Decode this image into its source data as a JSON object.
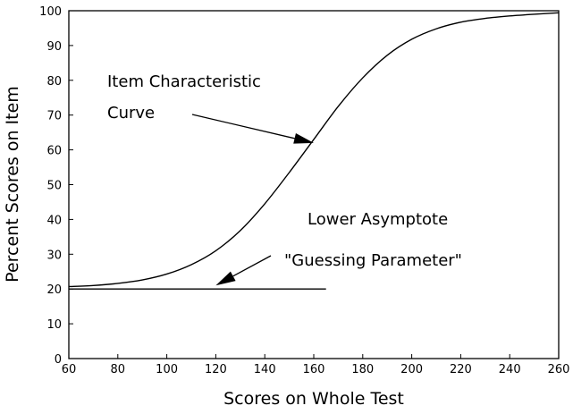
{
  "chart_data": {
    "type": "line",
    "title": "",
    "xlabel": "Scores on Whole Test",
    "ylabel": "Percent Scores on Item",
    "xlim": [
      60,
      260
    ],
    "ylim": [
      0,
      100
    ],
    "x_ticks": [
      60,
      80,
      100,
      120,
      140,
      160,
      180,
      200,
      220,
      240,
      260
    ],
    "y_ticks": [
      0,
      10,
      20,
      30,
      40,
      50,
      60,
      70,
      80,
      90,
      100
    ],
    "grid": false,
    "series": [
      {
        "x": [
          60,
          70,
          80,
          90,
          100,
          110,
          120,
          130,
          140,
          150,
          160,
          170,
          180,
          190,
          200,
          210,
          220,
          230,
          240,
          250,
          260
        ],
        "y": [
          20.7,
          21.0,
          21.6,
          22.6,
          24.3,
          27.0,
          31.0,
          36.8,
          44.5,
          53.5,
          63.0,
          72.5,
          80.7,
          87.2,
          91.8,
          94.8,
          96.7,
          97.8,
          98.5,
          99.0,
          99.4
        ]
      }
    ],
    "reference_lines": [
      {
        "x": [
          60,
          165
        ],
        "y": [
          20,
          20
        ]
      }
    ],
    "annotations": [
      {
        "lines": [
          "Item Characteristic",
          "Curve"
        ],
        "arrow_to": [
          160,
          62
        ]
      },
      {
        "lines": [
          "Lower Asymptote",
          "\"Guessing Parameter\""
        ],
        "arrow_to": [
          120,
          21
        ]
      }
    ]
  }
}
